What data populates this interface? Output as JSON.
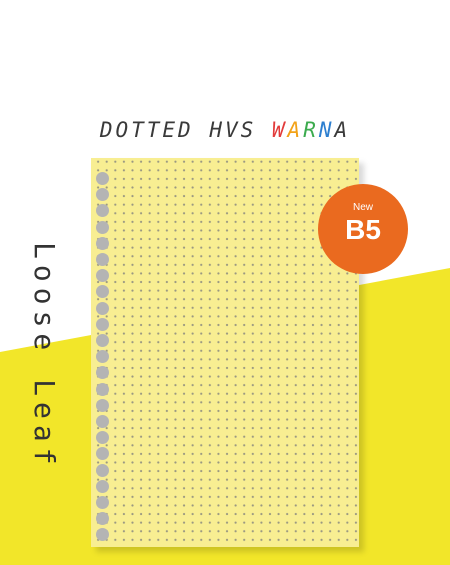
{
  "title": {
    "parts": [
      {
        "text": "DOTTED HVS ",
        "color": "#3a3a3a"
      },
      {
        "text": "W",
        "color": "#e23b3b"
      },
      {
        "text": "A",
        "color": "#f2a218"
      },
      {
        "text": "R",
        "color": "#3cab4e"
      },
      {
        "text": "N",
        "color": "#2d7fd0"
      },
      {
        "text": "A",
        "color": "#3a3a3a"
      }
    ]
  },
  "vertical_label": "Loose Leaf",
  "badge": {
    "new_label": "New",
    "size_label": "B5",
    "color": "#ea6a1f"
  },
  "colors": {
    "background_band": "#f2e629",
    "paper": "#f8ee92",
    "holes": "#b4b4b4"
  }
}
